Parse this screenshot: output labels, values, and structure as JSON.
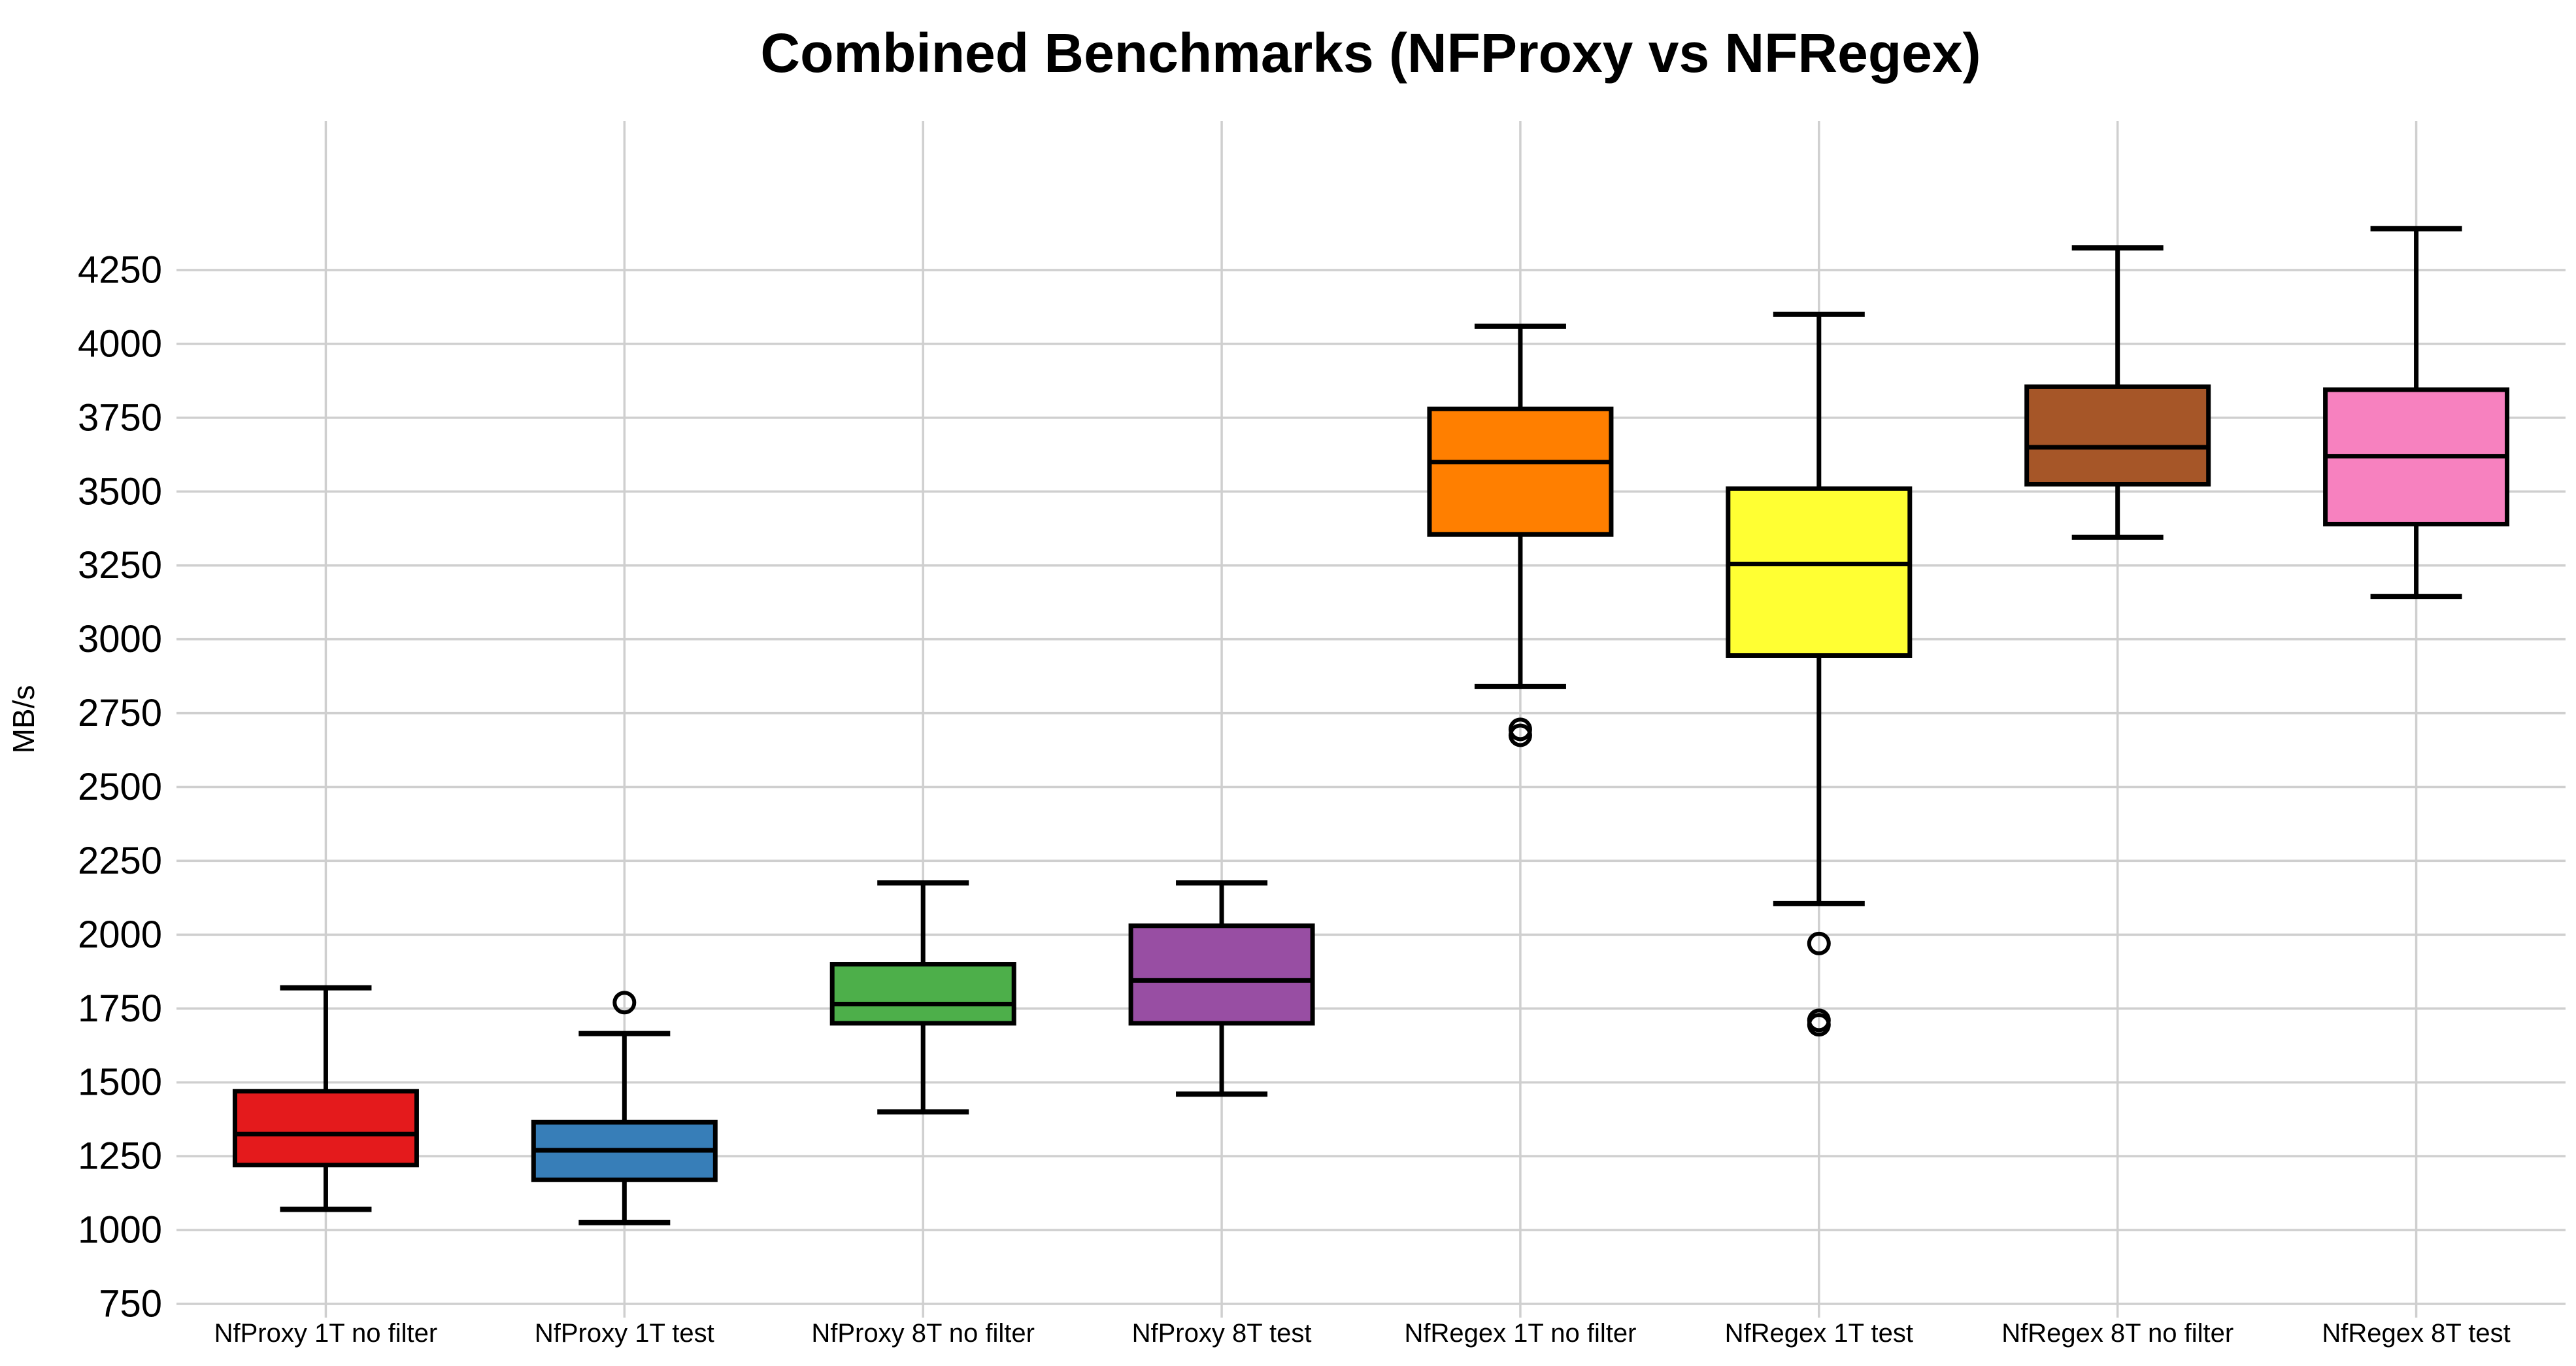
{
  "chart_data": {
    "type": "box",
    "title": "Combined Benchmarks (NFProxy vs NFRegex)",
    "ylabel": "MB/s",
    "xlabel": "",
    "yticks": [
      750,
      1000,
      1250,
      1500,
      1750,
      2000,
      2250,
      2500,
      2750,
      3000,
      3250,
      3500,
      3750,
      4000,
      4250
    ],
    "ylim": [
      700,
      4755
    ],
    "grid": true,
    "gridline_color": "#cfcfcf",
    "text_color": "#000000",
    "box_edge_color": "#000000",
    "median_color": "#000000",
    "categories": [
      "NfProxy 1T no filter",
      "NfProxy 1T test",
      "NfProxy 8T no filter",
      "NfProxy 8T test",
      "NfRegex 1T no filter",
      "NfRegex 1T test",
      "NfRegex 8T no filter",
      "NfRegex 8T test"
    ],
    "series": [
      {
        "label": "NfProxy 1T no filter",
        "color": "#e41a1c",
        "whisker_low": 1070,
        "q1": 1220,
        "median": 1325,
        "q3": 1470,
        "whisker_high": 1820,
        "outliers": []
      },
      {
        "label": "NfProxy 1T test",
        "color": "#377eb8",
        "whisker_low": 1025,
        "q1": 1170,
        "median": 1270,
        "q3": 1365,
        "whisker_high": 1665,
        "outliers": [
          1770
        ]
      },
      {
        "label": "NfProxy 8T no filter",
        "color": "#4daf4a",
        "whisker_low": 1400,
        "q1": 1700,
        "median": 1765,
        "q3": 1900,
        "whisker_high": 2175,
        "outliers": []
      },
      {
        "label": "NfProxy 8T test",
        "color": "#984ea3",
        "whisker_low": 1460,
        "q1": 1700,
        "median": 1845,
        "q3": 2030,
        "whisker_high": 2175,
        "outliers": []
      },
      {
        "label": "NfRegex 1T no filter",
        "color": "#ff7f00",
        "whisker_low": 2840,
        "q1": 3355,
        "median": 3600,
        "q3": 3780,
        "whisker_high": 4060,
        "outliers": [
          2695,
          2675
        ]
      },
      {
        "label": "NfRegex 1T test",
        "color": "#ffff33",
        "whisker_low": 2105,
        "q1": 2945,
        "median": 3255,
        "q3": 3510,
        "whisker_high": 4100,
        "outliers": [
          1970,
          1710,
          1695
        ]
      },
      {
        "label": "NfRegex 8T no filter",
        "color": "#a65628",
        "whisker_low": 3345,
        "q1": 3525,
        "median": 3650,
        "q3": 3855,
        "whisker_high": 4325,
        "outliers": []
      },
      {
        "label": "NfRegex 8T test",
        "color": "#f781bf",
        "whisker_low": 3145,
        "q1": 3390,
        "median": 3620,
        "q3": 3845,
        "whisker_high": 4390,
        "outliers": []
      }
    ]
  }
}
